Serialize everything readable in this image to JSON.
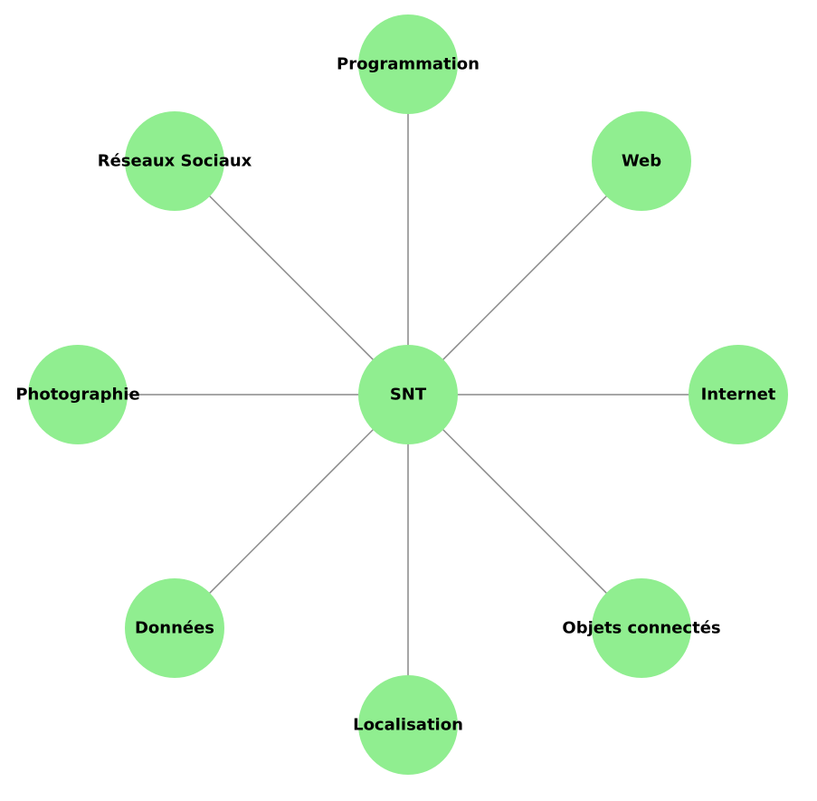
{
  "diagram": {
    "type": "star",
    "center": {
      "id": "snt",
      "label": "SNT"
    },
    "nodes": [
      {
        "id": "programmation",
        "label": "Programmation"
      },
      {
        "id": "web",
        "label": "Web"
      },
      {
        "id": "internet",
        "label": "Internet"
      },
      {
        "id": "objets-connectes",
        "label": "Objets connectés"
      },
      {
        "id": "localisation",
        "label": "Localisation"
      },
      {
        "id": "donnees",
        "label": "Données"
      },
      {
        "id": "photographie",
        "label": "Photographie"
      },
      {
        "id": "reseaux-sociaux",
        "label": "Réseaux Sociaux"
      }
    ],
    "edges": [
      [
        "snt",
        "programmation"
      ],
      [
        "snt",
        "web"
      ],
      [
        "snt",
        "internet"
      ],
      [
        "snt",
        "objets-connectes"
      ],
      [
        "snt",
        "localisation"
      ],
      [
        "snt",
        "donnees"
      ],
      [
        "snt",
        "photographie"
      ],
      [
        "snt",
        "reseaux-sociaux"
      ]
    ],
    "colors": {
      "node_fill": "#90ee90",
      "edge": "#888888",
      "label": "#000000",
      "background": "#ffffff"
    }
  }
}
